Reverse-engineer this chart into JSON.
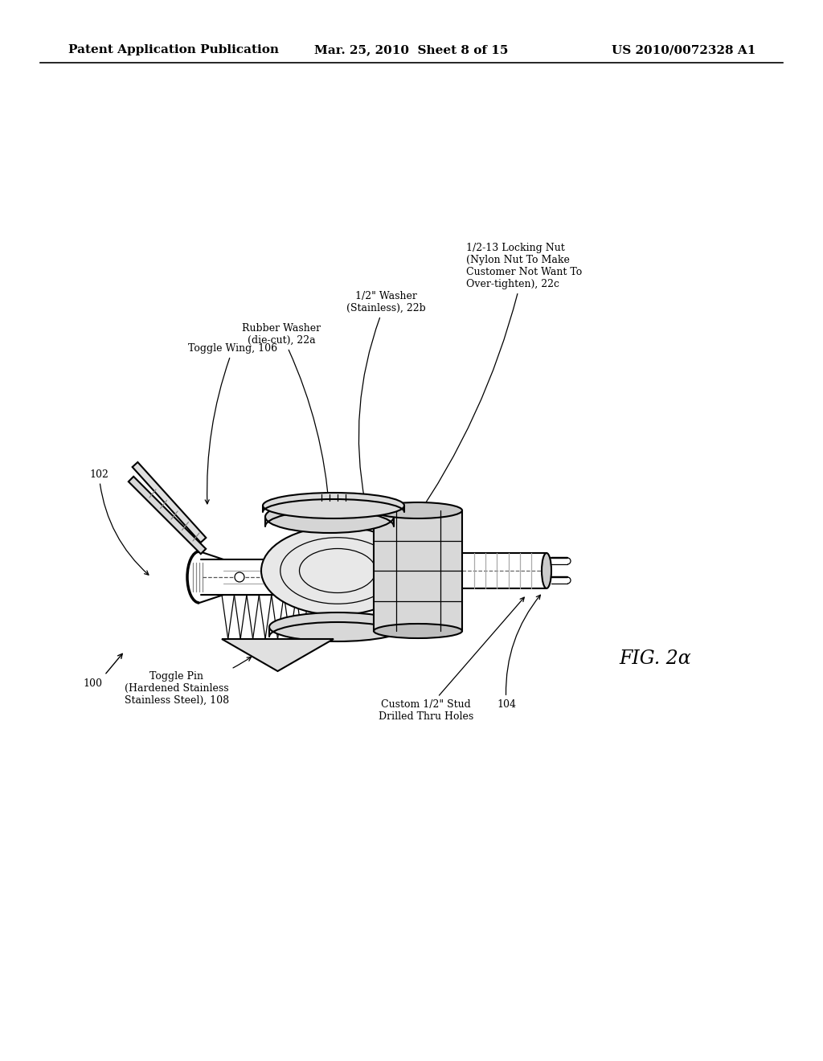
{
  "background_color": "#ffffff",
  "header_left": "Patent Application Publication",
  "header_center": "Mar. 25, 2010  Sheet 8 of 15",
  "header_right": "US 2010/0072328 A1",
  "fig_label": "FIG. 2α",
  "annotation_fontsize": 9,
  "header_fontsize": 11,
  "fig_label_fontsize": 17,
  "label_toggle_wing": "Toggle Wing, 106",
  "label_102": "102",
  "label_rubber_washer": "Rubber Washer\n(die-cut), 22a",
  "label_stainless_washer": "1/2\" Washer\n(Stainless), 22b",
  "label_locking_nut": "1/2-13 Locking Nut\n(Nylon Nut To Make\nCustomer Not Want To\nOver-tighten), 22c",
  "label_toggle_pin": "Toggle Pin\n(Hardened Stainless\nStainless Steel), 108",
  "label_custom_stud": "Custom 1/2\" Stud\nDrilled Thru Holes",
  "label_104": "104",
  "label_100": "100"
}
